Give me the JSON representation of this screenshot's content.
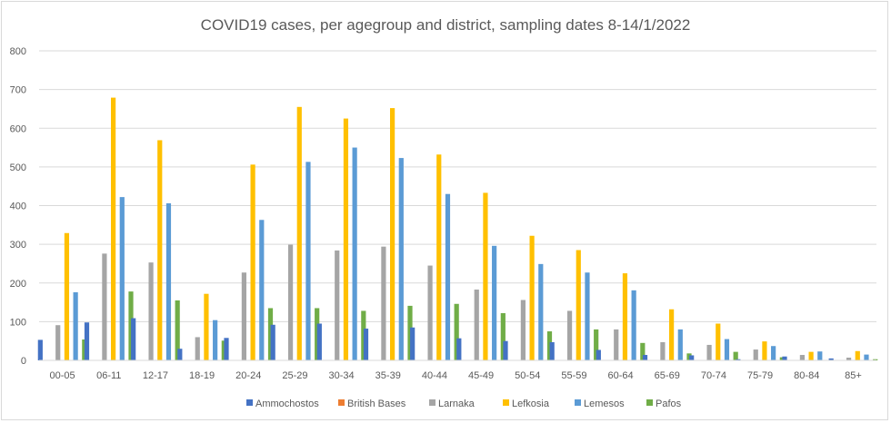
{
  "chart_data": {
    "type": "bar",
    "title": "COVID19 cases, per agegroup and district, sampling dates 8-14/1/2022",
    "xlabel": "",
    "ylabel": "",
    "ylim": [
      0,
      800
    ],
    "yticks": [
      0,
      100,
      200,
      300,
      400,
      500,
      600,
      700,
      800
    ],
    "grid": true,
    "legend_position": "bottom",
    "categories": [
      "00-05",
      "06-11",
      "12-17",
      "18-19",
      "20-24",
      "25-29",
      "30-34",
      "35-39",
      "40-44",
      "45-49",
      "50-54",
      "55-59",
      "60-64",
      "65-69",
      "70-74",
      "75-79",
      "80-84",
      "85+"
    ],
    "series": [
      {
        "name": "Ammochostos",
        "color": "#4472c4",
        "values": [
          53,
          98,
          109,
          30,
          58,
          92,
          95,
          82,
          85,
          57,
          50,
          47,
          27,
          14,
          13,
          3,
          10,
          5
        ]
      },
      {
        "name": "British Bases",
        "color": "#ed7d31",
        "values": [
          0,
          0,
          0,
          0,
          0,
          0,
          0,
          0,
          0,
          0,
          0,
          0,
          0,
          0,
          0,
          0,
          0,
          0
        ]
      },
      {
        "name": "Larnaka",
        "color": "#a5a5a5",
        "values": [
          91,
          276,
          253,
          60,
          227,
          299,
          284,
          294,
          245,
          183,
          156,
          128,
          80,
          47,
          40,
          28,
          14,
          7
        ]
      },
      {
        "name": "Lefkosia",
        "color": "#ffc000",
        "values": [
          329,
          679,
          569,
          172,
          506,
          655,
          625,
          652,
          532,
          433,
          322,
          285,
          225,
          132,
          95,
          49,
          22,
          24
        ]
      },
      {
        "name": "Lemesos",
        "color": "#5b9bd5",
        "values": [
          176,
          422,
          406,
          104,
          363,
          513,
          550,
          523,
          430,
          296,
          249,
          227,
          181,
          80,
          55,
          37,
          23,
          15
        ]
      },
      {
        "name": "Pafos",
        "color": "#70ad47",
        "values": [
          54,
          178,
          155,
          51,
          135,
          135,
          128,
          141,
          146,
          122,
          75,
          80,
          45,
          18,
          22,
          8,
          0,
          3
        ]
      }
    ]
  }
}
